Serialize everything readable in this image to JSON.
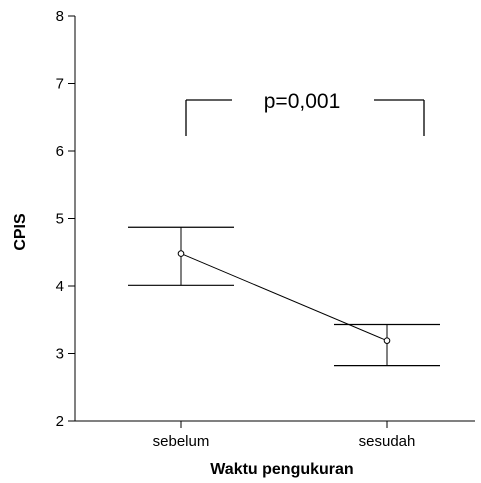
{
  "chart_data": {
    "type": "line",
    "title": "",
    "xlabel": "Waktu pengukuran",
    "ylabel": "CPIS",
    "ylim": [
      2,
      8
    ],
    "yticks": [
      "2",
      "3",
      "4",
      "5",
      "6",
      "7",
      "8"
    ],
    "categories": [
      "sebelum",
      "sesudah"
    ],
    "series": [
      {
        "values": [
          4.48,
          3.19
        ],
        "lower": [
          4.01,
          2.82
        ],
        "upper": [
          4.87,
          3.43
        ]
      }
    ],
    "annotation": "p=0,001",
    "colors": {
      "line": "#000000",
      "axis": "#000000",
      "background": "#ffffff"
    },
    "grid": false,
    "legend": "none"
  }
}
